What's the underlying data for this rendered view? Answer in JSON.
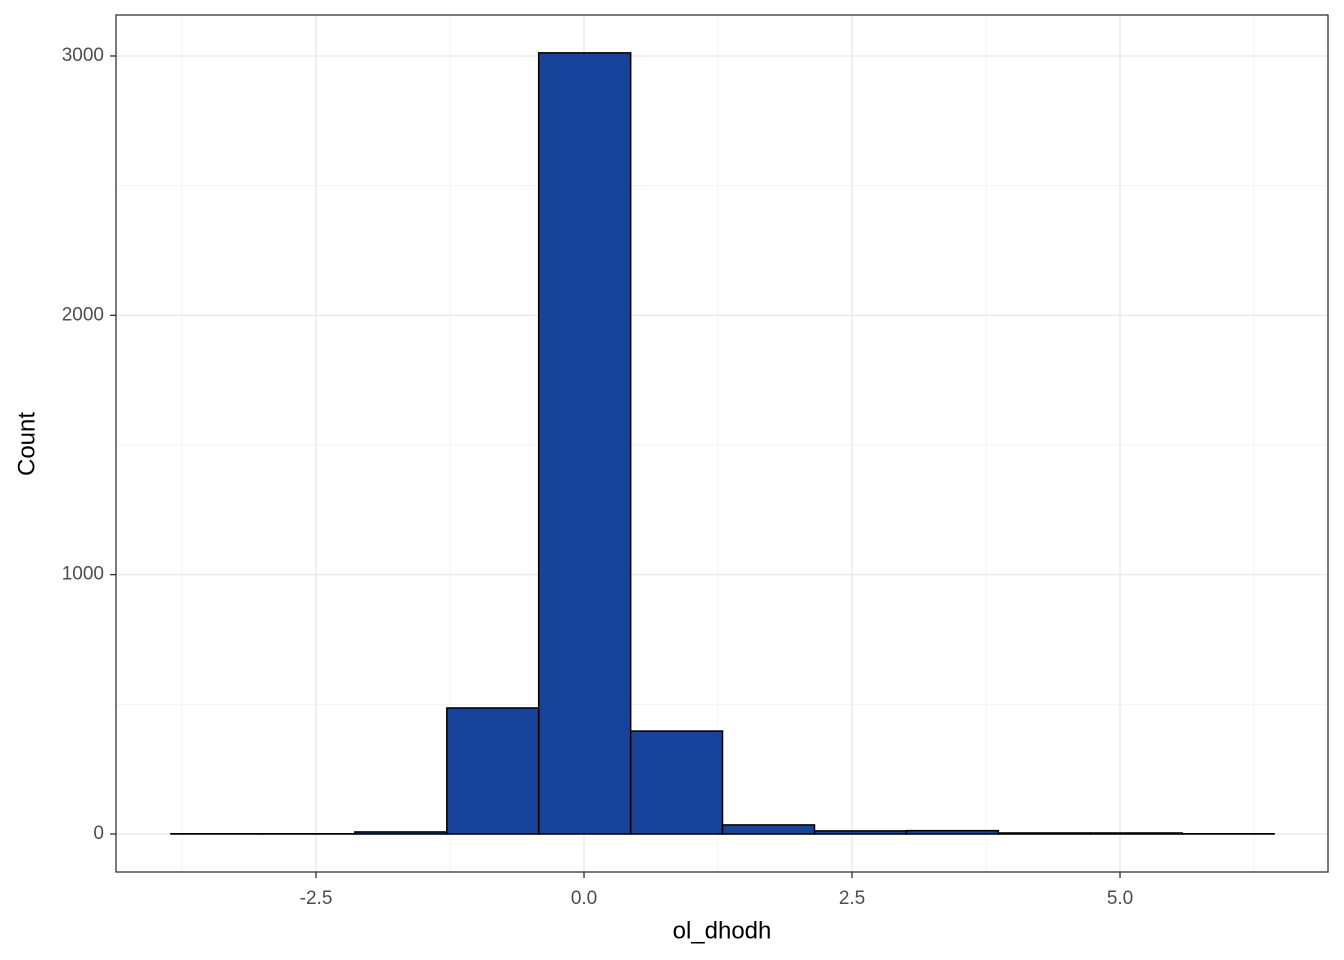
{
  "chart_data": {
    "type": "histogram",
    "x_label": "ol_dhodh",
    "y_label": "Count",
    "bins": [
      -3.853,
      -2.995,
      -2.138,
      -1.28,
      -0.423,
      0.435,
      1.292,
      2.15,
      3.007,
      3.865,
      4.722,
      5.58,
      6.437
    ],
    "values": [
      1,
      1,
      8,
      486,
      3012,
      397,
      35,
      12,
      13,
      4,
      4,
      1
    ],
    "color": "#18439a",
    "edgecolor": "#000000",
    "xlim": [
      -4.366,
      6.94
    ],
    "ylim": [
      -146.5,
      3158
    ],
    "xticks": [
      -2.5,
      {
        "value": 0,
        "label": "0.0"
      },
      2.5,
      {
        "value": 5,
        "label": "5.0"
      }
    ],
    "yticks": [
      0,
      1000,
      2000,
      3000
    ],
    "xminor": [
      -3.75,
      -1.25,
      1.25,
      3.75,
      6.25
    ],
    "yminor": [
      500,
      1500,
      2500
    ],
    "grid": true
  }
}
